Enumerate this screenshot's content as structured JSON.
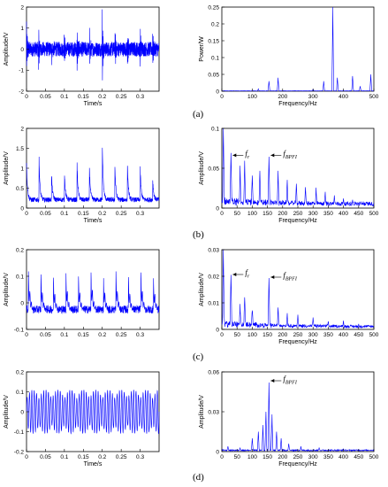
{
  "figure": {
    "panel_labels": [
      "(a)",
      "(b)",
      "(c)",
      "(d)"
    ]
  },
  "chart_data": [
    {
      "panel": "(a)",
      "side": "left",
      "type": "line",
      "xlabel": "Time/s",
      "ylabel": "Amplitude/V",
      "xlim": [
        0,
        0.35
      ],
      "ylim": [
        -2,
        2
      ],
      "xticks": [
        0,
        0.05,
        0.1,
        0.15,
        0.2,
        0.25,
        0.3
      ],
      "yticks": [
        -2,
        -1,
        0,
        1,
        2
      ],
      "series": [
        {
          "color": "#0000ff",
          "description_values": "noisy vibration signal, baseline ~±0.4 V with impulses",
          "impulse_times": [
            0.0,
            0.032,
            0.066,
            0.099,
            0.133,
            0.166,
            0.2,
            0.233,
            0.266,
            0.3,
            0.333
          ],
          "impulse_amplitudes": [
            1.2,
            -1.1,
            1.0,
            -0.9,
            1.5,
            -1.0,
            1.6,
            -1.3,
            1.1,
            -0.9,
            0.8
          ],
          "noise_level": 0.35
        }
      ]
    },
    {
      "panel": "(a)",
      "side": "right",
      "type": "line",
      "xlabel": "Frequency/Hz",
      "ylabel": "Power/W",
      "xlim": [
        0,
        500
      ],
      "ylim": [
        0,
        0.25
      ],
      "xticks": [
        0,
        100,
        200,
        300,
        400,
        500
      ],
      "yticks": [
        0,
        0.05,
        0.1,
        0.15,
        0.2,
        0.25
      ],
      "series": [
        {
          "color": "#0000ff",
          "peaks": [
            [
              120,
              0.007
            ],
            [
              155,
              0.03
            ],
            [
              185,
              0.04
            ],
            [
              300,
              0.006
            ],
            [
              335,
              0.03
            ],
            [
              365,
              0.25
            ],
            [
              380,
              0.04
            ],
            [
              430,
              0.045
            ],
            [
              455,
              0.015
            ],
            [
              490,
              0.05
            ]
          ],
          "floor": 0.001
        }
      ]
    },
    {
      "panel": "(b)",
      "side": "left",
      "type": "line",
      "xlabel": "Time/s",
      "ylabel": "Amplitude/V",
      "xlim": [
        0,
        0.35
      ],
      "ylim": [
        0,
        2
      ],
      "xticks": [
        0,
        0.05,
        0.1,
        0.15,
        0.2,
        0.25,
        0.3
      ],
      "yticks": [
        0,
        0.5,
        1,
        1.5,
        2
      ],
      "series": [
        {
          "color": "#0000ff",
          "impulse_times": [
            0.0,
            0.033,
            0.066,
            0.1,
            0.133,
            0.166,
            0.2,
            0.233,
            0.266,
            0.3,
            0.333
          ],
          "impulse_amplitudes": [
            1.1,
            1.2,
            0.8,
            0.9,
            1.2,
            1.0,
            1.6,
            1.1,
            1.2,
            1.0,
            0.7
          ],
          "floor": 0.15
        }
      ]
    },
    {
      "panel": "(b)",
      "side": "right",
      "type": "line",
      "xlabel": "Frequency/Hz",
      "ylabel": "Amplitude/V",
      "xlim": [
        0,
        500
      ],
      "ylim": [
        0,
        0.1
      ],
      "xticks": [
        0,
        50,
        100,
        150,
        200,
        250,
        300,
        350,
        400,
        450,
        500
      ],
      "yticks": [
        0,
        0.05,
        0.1
      ],
      "annotations": [
        {
          "text": "f",
          "sub": "r",
          "x": 30,
          "y": 0.064
        },
        {
          "text": "f",
          "sub": "BPFI",
          "x": 155,
          "y": 0.064
        }
      ],
      "series": [
        {
          "color": "#0000ff",
          "peaks": [
            [
              5,
              0.1
            ],
            [
              30,
              0.064
            ],
            [
              60,
              0.05
            ],
            [
              75,
              0.055
            ],
            [
              100,
              0.04
            ],
            [
              125,
              0.045
            ],
            [
              155,
              0.064
            ],
            [
              185,
              0.045
            ],
            [
              215,
              0.035
            ],
            [
              245,
              0.03
            ],
            [
              275,
              0.025
            ],
            [
              310,
              0.025
            ],
            [
              340,
              0.02
            ],
            [
              370,
              0.015
            ],
            [
              400,
              0.012
            ],
            [
              430,
              0.01
            ],
            [
              465,
              0.008
            ]
          ],
          "floor": 0.005
        }
      ]
    },
    {
      "panel": "(c)",
      "side": "left",
      "type": "line",
      "xlabel": "",
      "ylabel": "Amplitude/V",
      "xlim": [
        0,
        0.35
      ],
      "ylim": [
        -0.1,
        0.2
      ],
      "xticks": [
        0,
        0.05,
        0.1,
        0.15,
        0.2,
        0.25,
        0.3
      ],
      "yticks": [
        -0.1,
        0,
        0.1,
        0.2
      ],
      "series": [
        {
          "color": "#0000ff",
          "impulse_times": [
            0.005,
            0.038,
            0.071,
            0.104,
            0.137,
            0.17,
            0.203,
            0.236,
            0.269,
            0.302,
            0.335
          ],
          "impulse_amplitudes": [
            0.12,
            0.11,
            0.1,
            0.12,
            0.11,
            0.13,
            0.11,
            0.12,
            0.1,
            0.12,
            0.1
          ],
          "floor": -0.04
        }
      ]
    },
    {
      "panel": "(c)",
      "side": "right",
      "type": "line",
      "xlabel": "Frequency/Hz",
      "ylabel": "Amplitude/V",
      "xlim": [
        0,
        500
      ],
      "ylim": [
        0,
        0.03
      ],
      "xticks": [
        0,
        50,
        100,
        150,
        200,
        250,
        300,
        350,
        400,
        450,
        500
      ],
      "yticks": [
        0,
        0.01,
        0.02,
        0.03
      ],
      "annotations": [
        {
          "text": "f",
          "sub": "r",
          "x": 30,
          "y": 0.02
        },
        {
          "text": "f",
          "sub": "BPFI",
          "x": 155,
          "y": 0.019
        }
      ],
      "series": [
        {
          "color": "#0000ff",
          "peaks": [
            [
              5,
              0.03
            ],
            [
              30,
              0.02
            ],
            [
              60,
              0.008
            ],
            [
              75,
              0.012
            ],
            [
              100,
              0.007
            ],
            [
              155,
              0.019
            ],
            [
              185,
              0.008
            ],
            [
              215,
              0.006
            ],
            [
              250,
              0.005
            ],
            [
              300,
              0.004
            ],
            [
              350,
              0.003
            ],
            [
              400,
              0.003
            ],
            [
              450,
              0.002
            ]
          ],
          "floor": 0.001
        }
      ]
    },
    {
      "panel": "(d)",
      "side": "left",
      "type": "line",
      "xlabel": "Time/s",
      "ylabel": "Amplitude/V",
      "xlim": [
        0,
        0.35
      ],
      "ylim": [
        -0.2,
        0.2
      ],
      "xticks": [
        0,
        0.05,
        0.1,
        0.15,
        0.2,
        0.25,
        0.3
      ],
      "yticks": [
        -0.2,
        -0.1,
        0,
        0.1,
        0.2
      ],
      "series": [
        {
          "color": "#0000ff",
          "carrier_hz": 160,
          "amplitude": 0.11,
          "modulation_hz": 30
        }
      ]
    },
    {
      "panel": "(d)",
      "side": "right",
      "type": "line",
      "xlabel": "Frequency/Hz",
      "ylabel": "Amplitude/V",
      "xlim": [
        0,
        500
      ],
      "ylim": [
        0,
        0.06
      ],
      "xticks": [
        0,
        50,
        100,
        150,
        200,
        250,
        300,
        350,
        400,
        450,
        500
      ],
      "yticks": [
        0,
        0.03,
        0.06
      ],
      "annotations": [
        {
          "text": "f",
          "sub": "BPFI",
          "x": 155,
          "y": 0.052
        }
      ],
      "series": [
        {
          "color": "#0000ff",
          "peaks": [
            [
              20,
              0.004
            ],
            [
              60,
              0.003
            ],
            [
              100,
              0.01
            ],
            [
              120,
              0.015
            ],
            [
              135,
              0.02
            ],
            [
              145,
              0.03
            ],
            [
              155,
              0.052
            ],
            [
              165,
              0.028
            ],
            [
              180,
              0.015
            ],
            [
              195,
              0.01
            ],
            [
              220,
              0.006
            ],
            [
              260,
              0.004
            ],
            [
              320,
              0.003
            ],
            [
              400,
              0.002
            ]
          ],
          "floor": 0.001
        }
      ]
    }
  ]
}
